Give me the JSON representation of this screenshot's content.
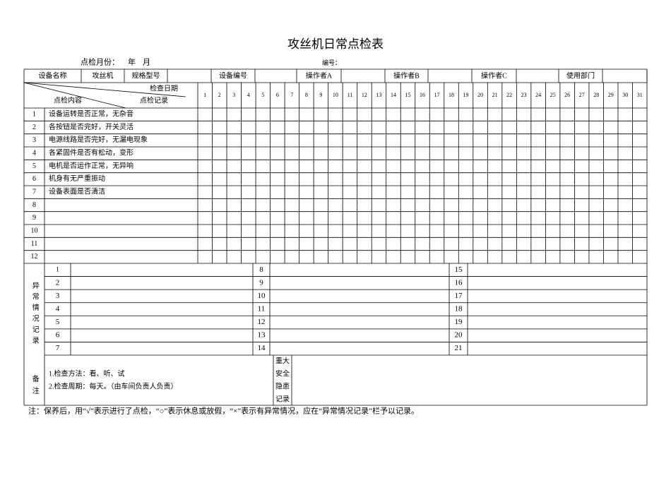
{
  "title": "攻丝机日常点检表",
  "header": {
    "month_label": "点检月份：",
    "year": "年",
    "month": "月",
    "number_label": "编号："
  },
  "info_row": [
    "设备名称",
    "攻丝机",
    "规格型号",
    "设备编号",
    "操作者A",
    "操作者B",
    "操作者C",
    "使用部门"
  ],
  "table": {
    "date_header": "检查日期",
    "record_header": "点检记录",
    "content_header": "点检内容",
    "days": [
      1,
      2,
      3,
      4,
      5,
      6,
      7,
      8,
      9,
      10,
      11,
      12,
      13,
      14,
      15,
      16,
      17,
      18,
      19,
      20,
      21,
      22,
      23,
      24,
      25,
      26,
      27,
      28,
      29,
      30,
      31
    ],
    "item_numbers": [
      1,
      2,
      3,
      4,
      5,
      6,
      7,
      8,
      9,
      10,
      11,
      12
    ],
    "item_contents": [
      "设备运转是否正常，无杂音",
      "各按钮是否完好，开关灵活",
      "电源线路是否完好，无漏电现象",
      "各紧固件是否有松动，变形",
      "电机是否运作正常，无异响",
      "机身有无严重振动",
      "设备表面是否清洁"
    ]
  },
  "abnormal": {
    "label": "异常情况记录",
    "numbers": [
      1,
      2,
      3,
      4,
      5,
      6,
      7,
      8,
      9,
      10,
      11,
      12,
      13,
      14,
      15,
      16,
      17,
      18,
      19,
      20,
      21
    ]
  },
  "remarks": {
    "label": "备注",
    "lines": [
      "1.检查方法：看、听、试",
      "2.检查周期：每天。（由车间负责人负责）"
    ],
    "hazard_label": [
      "重大",
      "安全",
      "隐患",
      "记录"
    ]
  },
  "footer": "注：保养后，用“√”表示进行了点检，“○”表示休息或放假，“×”表示有异常情况，应在“异常情况记录”栏予以记录。"
}
